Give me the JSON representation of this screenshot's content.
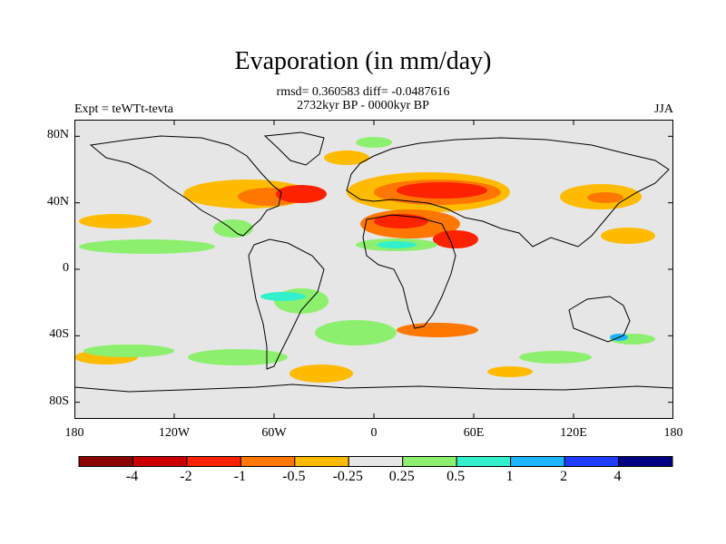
{
  "title": "Evaporation (in mm/day)",
  "stats_line": "rmsd= 0.360583 diff= -0.0487616",
  "period_line": "2732kyr BP - 0000kyr BP",
  "left_label": "Expt = teWTt-tevta",
  "right_label": "JJA",
  "map": {
    "lon_range": [
      -180,
      180
    ],
    "lat_range": [
      -90,
      90
    ],
    "land_fill": "#e6e6e6",
    "coast_color": "#000000",
    "lat_ticks": [
      {
        "value": 80,
        "label": "80N"
      },
      {
        "value": 40,
        "label": "40N"
      },
      {
        "value": 0,
        "label": "0"
      },
      {
        "value": -40,
        "label": "40S"
      },
      {
        "value": -80,
        "label": "80S"
      }
    ],
    "lon_ticks": [
      {
        "value": -180,
        "label": "180"
      },
      {
        "value": -120,
        "label": "120W"
      },
      {
        "value": -60,
        "label": "60W"
      },
      {
        "value": 0,
        "label": "0"
      },
      {
        "value": 60,
        "label": "60E"
      },
      {
        "value": 120,
        "label": "120E"
      },
      {
        "value": 180,
        "label": "180"
      }
    ]
  },
  "colorbar": {
    "colors": [
      "#8b0000",
      "#cc0000",
      "#ff2200",
      "#ff7700",
      "#ffbb00",
      "#e6e6e6",
      "#8cf06e",
      "#33f0cc",
      "#1eb4ff",
      "#1e3cff",
      "#000080"
    ],
    "labels": [
      "-4",
      "-2",
      "-1",
      "-0.5",
      "-0.25",
      "0.25",
      "0.5",
      "1",
      "2",
      "4"
    ]
  }
}
